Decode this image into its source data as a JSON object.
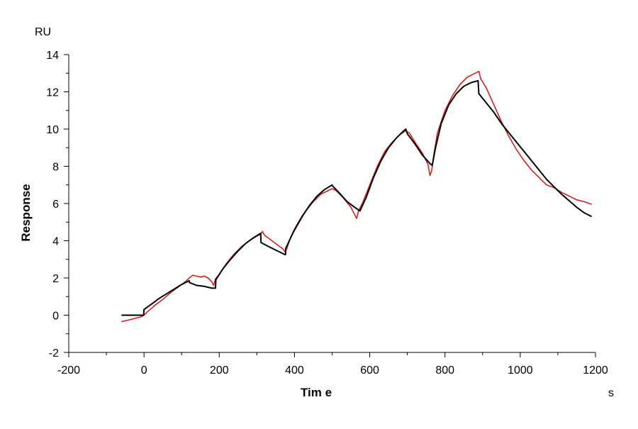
{
  "chart_data": {
    "type": "line",
    "xlabel": "Tim e",
    "ylabel": "Response",
    "x_unit": "s",
    "y_unit": "RU",
    "xlim": [
      -200,
      1200
    ],
    "ylim": [
      -2,
      14
    ],
    "x_ticks": [
      -200,
      0,
      200,
      400,
      600,
      800,
      1000,
      1200
    ],
    "y_ticks": [
      -2,
      0,
      2,
      4,
      6,
      8,
      10,
      12,
      14
    ],
    "grid": false,
    "legend": "none",
    "series": [
      {
        "color": "#d42020",
        "role": "measured",
        "points": [
          [
            -60,
            -0.35
          ],
          [
            -50,
            -0.3
          ],
          [
            -40,
            -0.25
          ],
          [
            -30,
            -0.2
          ],
          [
            -20,
            -0.15
          ],
          [
            -10,
            -0.1
          ],
          [
            0,
            0.0
          ],
          [
            10,
            0.2
          ],
          [
            30,
            0.55
          ],
          [
            50,
            0.85
          ],
          [
            70,
            1.2
          ],
          [
            90,
            1.5
          ],
          [
            110,
            1.8
          ],
          [
            120,
            2.0
          ],
          [
            130,
            2.15
          ],
          [
            140,
            2.1
          ],
          [
            150,
            2.05
          ],
          [
            160,
            2.1
          ],
          [
            170,
            2.0
          ],
          [
            180,
            1.8
          ],
          [
            185,
            1.6
          ],
          [
            190,
            1.95
          ],
          [
            200,
            2.2
          ],
          [
            220,
            2.8
          ],
          [
            240,
            3.3
          ],
          [
            260,
            3.7
          ],
          [
            280,
            4.0
          ],
          [
            300,
            4.25
          ],
          [
            310,
            4.35
          ],
          [
            315,
            4.5
          ],
          [
            320,
            4.3
          ],
          [
            340,
            4.0
          ],
          [
            360,
            3.7
          ],
          [
            370,
            3.55
          ],
          [
            375,
            3.4
          ],
          [
            380,
            3.6
          ],
          [
            390,
            4.2
          ],
          [
            410,
            4.9
          ],
          [
            430,
            5.6
          ],
          [
            450,
            6.1
          ],
          [
            470,
            6.5
          ],
          [
            490,
            6.7
          ],
          [
            500,
            6.8
          ],
          [
            510,
            6.7
          ],
          [
            530,
            6.3
          ],
          [
            550,
            5.8
          ],
          [
            560,
            5.4
          ],
          [
            565,
            5.2
          ],
          [
            570,
            5.6
          ],
          [
            580,
            6.0
          ],
          [
            600,
            7.0
          ],
          [
            620,
            8.0
          ],
          [
            640,
            8.8
          ],
          [
            660,
            9.3
          ],
          [
            680,
            9.7
          ],
          [
            695,
            9.9
          ],
          [
            705,
            9.8
          ],
          [
            720,
            9.3
          ],
          [
            740,
            8.7
          ],
          [
            755,
            8.1
          ],
          [
            760,
            7.5
          ],
          [
            765,
            7.8
          ],
          [
            770,
            8.6
          ],
          [
            780,
            9.8
          ],
          [
            800,
            11.0
          ],
          [
            820,
            11.8
          ],
          [
            840,
            12.4
          ],
          [
            860,
            12.8
          ],
          [
            880,
            13.0
          ],
          [
            890,
            13.1
          ],
          [
            895,
            12.7
          ],
          [
            910,
            12.2
          ],
          [
            930,
            11.3
          ],
          [
            950,
            10.4
          ],
          [
            970,
            9.6
          ],
          [
            990,
            8.9
          ],
          [
            1010,
            8.3
          ],
          [
            1030,
            7.8
          ],
          [
            1050,
            7.4
          ],
          [
            1070,
            7.0
          ],
          [
            1090,
            6.85
          ],
          [
            1110,
            6.6
          ],
          [
            1130,
            6.4
          ],
          [
            1150,
            6.2
          ],
          [
            1170,
            6.1
          ],
          [
            1190,
            5.95
          ]
        ]
      },
      {
        "color": "#000000",
        "role": "fit",
        "points": [
          [
            -60,
            0.0
          ],
          [
            -1,
            0.0
          ],
          [
            0,
            0.3
          ],
          [
            20,
            0.6
          ],
          [
            40,
            0.9
          ],
          [
            60,
            1.15
          ],
          [
            80,
            1.4
          ],
          [
            100,
            1.65
          ],
          [
            120,
            1.85
          ],
          [
            121,
            1.75
          ],
          [
            140,
            1.6
          ],
          [
            160,
            1.55
          ],
          [
            180,
            1.45
          ],
          [
            190,
            1.45
          ],
          [
            191,
            1.9
          ],
          [
            210,
            2.5
          ],
          [
            230,
            3.0
          ],
          [
            250,
            3.45
          ],
          [
            270,
            3.85
          ],
          [
            290,
            4.15
          ],
          [
            310,
            4.4
          ],
          [
            311,
            3.9
          ],
          [
            330,
            3.7
          ],
          [
            350,
            3.5
          ],
          [
            370,
            3.3
          ],
          [
            376,
            3.25
          ],
          [
            377,
            3.6
          ],
          [
            400,
            4.6
          ],
          [
            420,
            5.3
          ],
          [
            440,
            5.9
          ],
          [
            460,
            6.4
          ],
          [
            480,
            6.75
          ],
          [
            500,
            7.0
          ],
          [
            501,
            6.95
          ],
          [
            520,
            6.55
          ],
          [
            540,
            6.1
          ],
          [
            560,
            5.8
          ],
          [
            574,
            5.6
          ],
          [
            590,
            6.3
          ],
          [
            610,
            7.4
          ],
          [
            630,
            8.3
          ],
          [
            650,
            9.0
          ],
          [
            670,
            9.5
          ],
          [
            690,
            9.9
          ],
          [
            696,
            10.0
          ],
          [
            700,
            9.75
          ],
          [
            720,
            9.2
          ],
          [
            740,
            8.6
          ],
          [
            760,
            8.15
          ],
          [
            766,
            8.05
          ],
          [
            775,
            9.0
          ],
          [
            790,
            10.3
          ],
          [
            810,
            11.3
          ],
          [
            830,
            11.9
          ],
          [
            850,
            12.3
          ],
          [
            870,
            12.5
          ],
          [
            888,
            12.6
          ],
          [
            890,
            11.9
          ],
          [
            910,
            11.4
          ],
          [
            930,
            10.9
          ],
          [
            950,
            10.3
          ],
          [
            970,
            9.8
          ],
          [
            990,
            9.3
          ],
          [
            1010,
            8.8
          ],
          [
            1030,
            8.3
          ],
          [
            1050,
            7.8
          ],
          [
            1070,
            7.3
          ],
          [
            1090,
            6.9
          ],
          [
            1110,
            6.5
          ],
          [
            1130,
            6.15
          ],
          [
            1150,
            5.8
          ],
          [
            1170,
            5.5
          ],
          [
            1190,
            5.3
          ]
        ]
      }
    ]
  }
}
